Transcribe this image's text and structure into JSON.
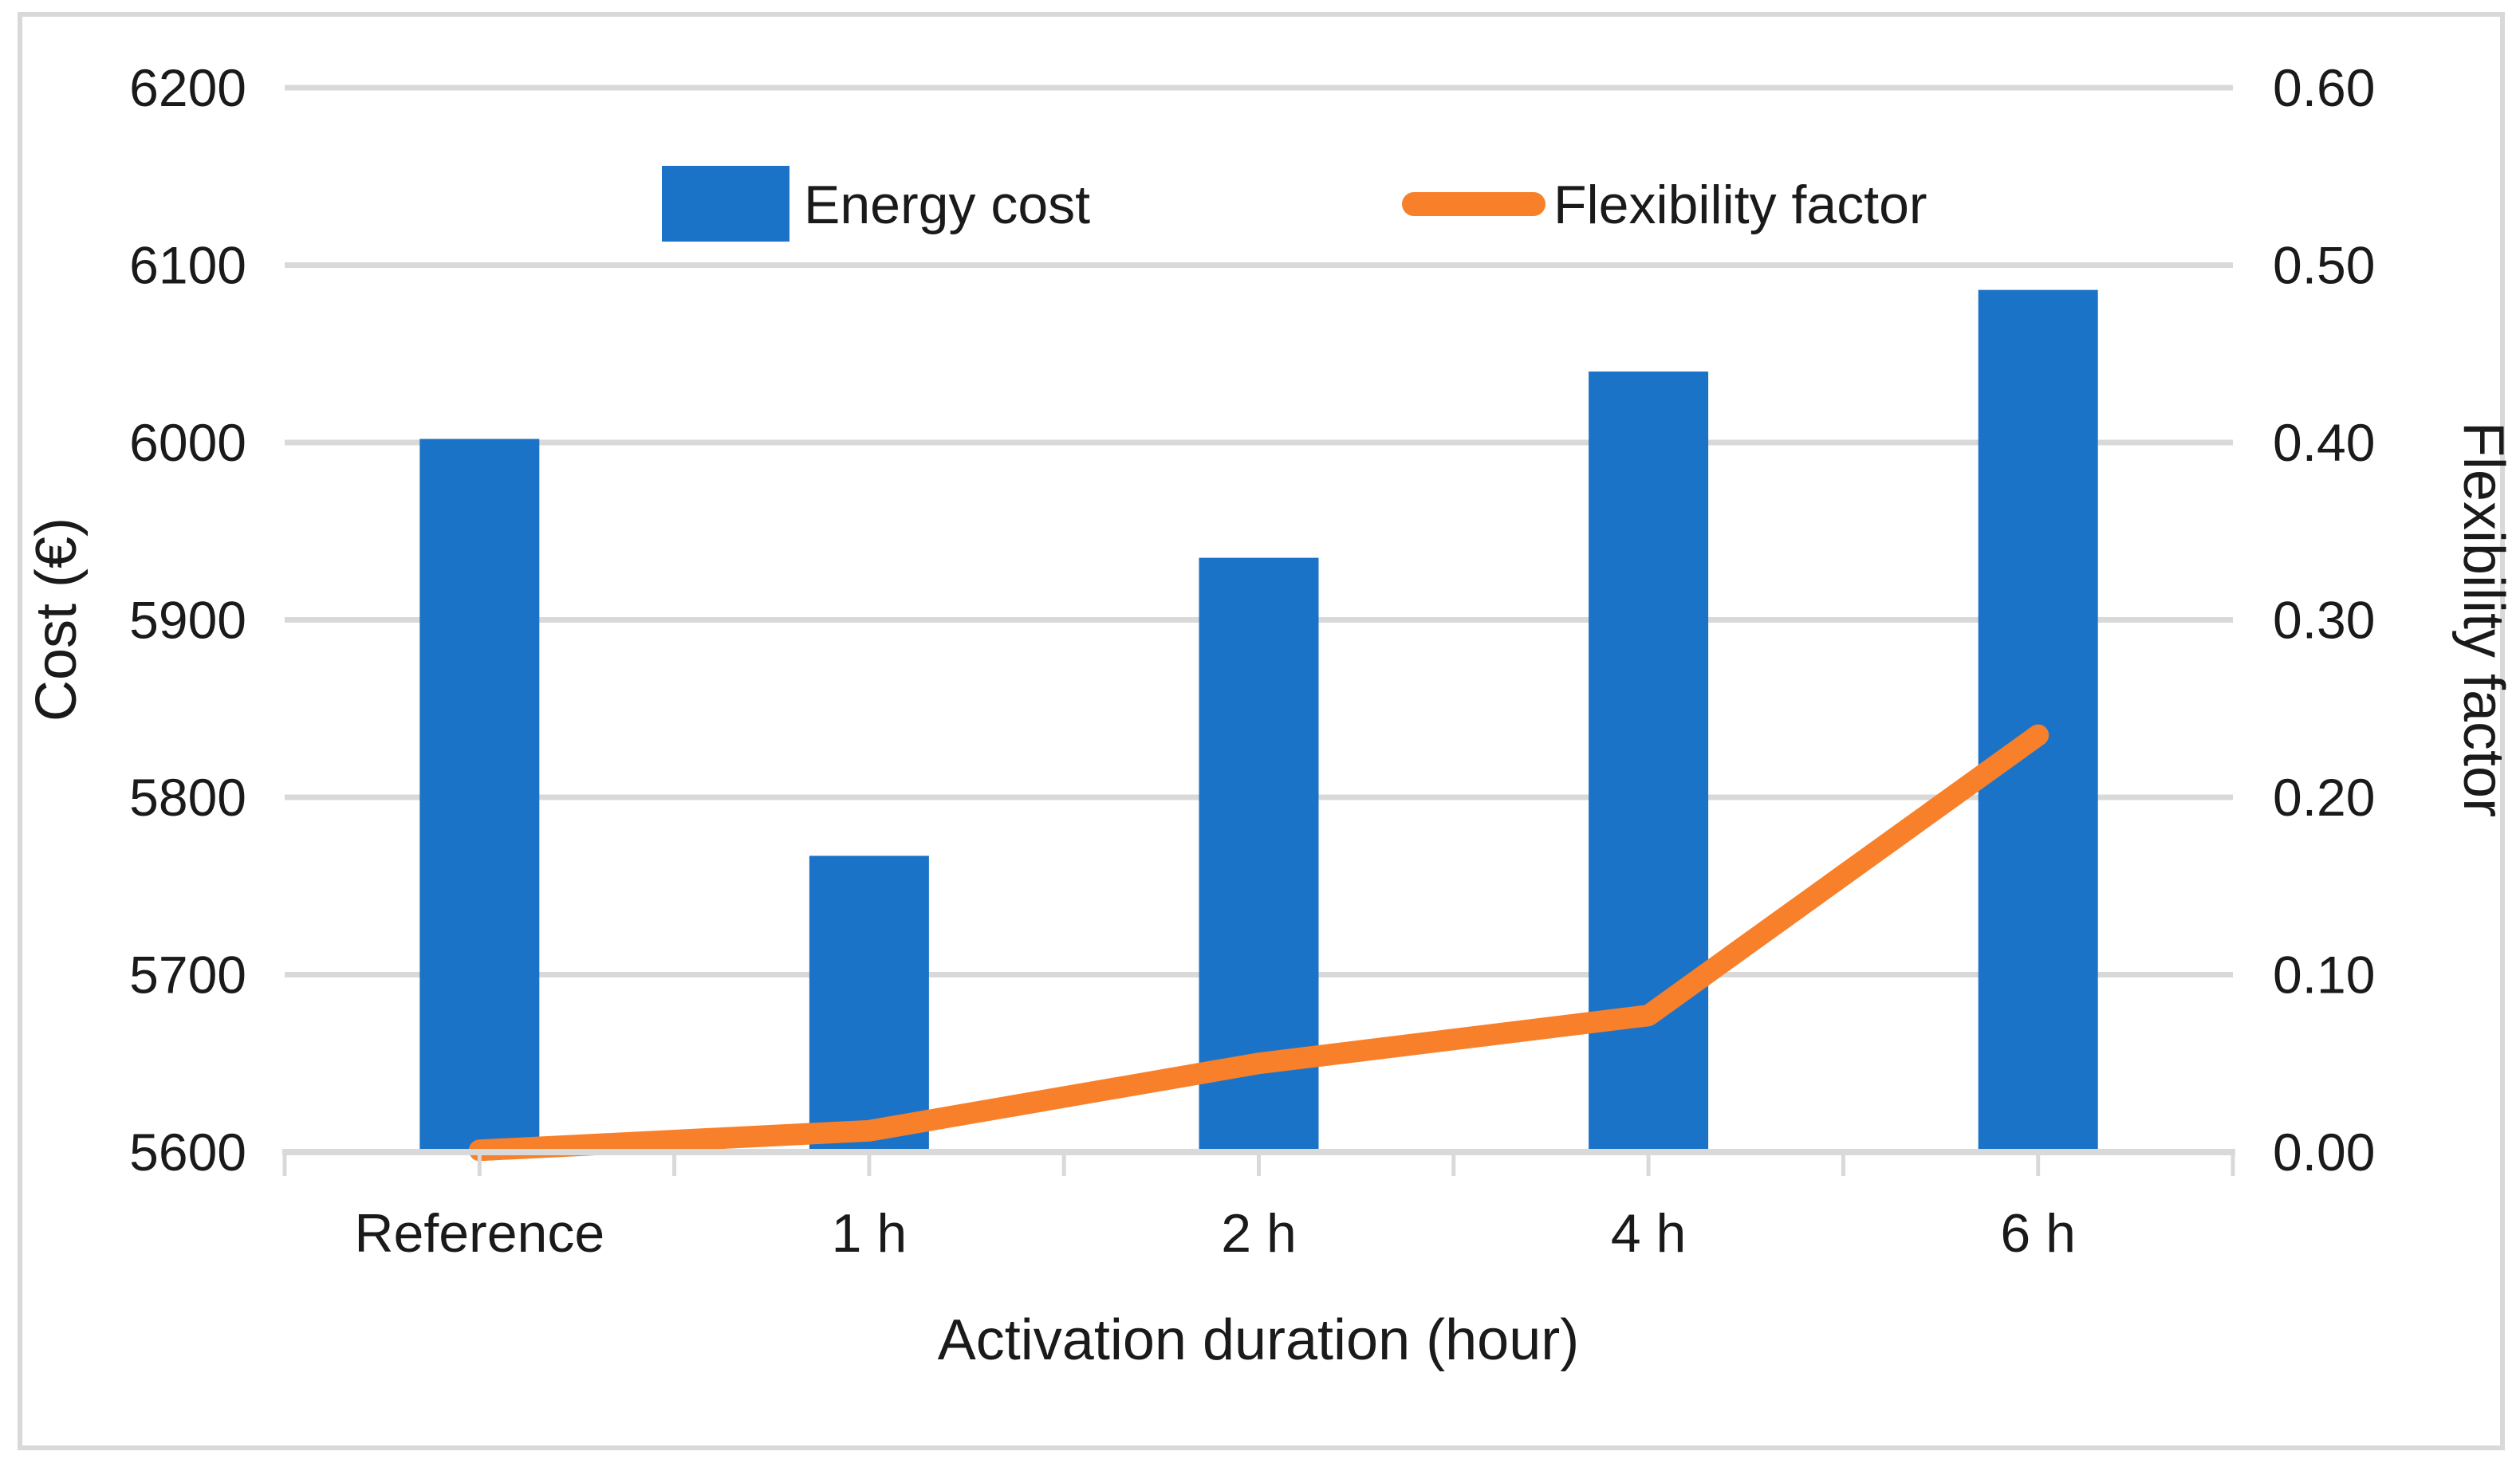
{
  "chart_data": {
    "type": "combo-bar-line",
    "categories": [
      "Reference",
      "1 h",
      "2 h",
      "4 h",
      "6 h"
    ],
    "series": [
      {
        "name": "Energy cost",
        "type": "bar",
        "axis": "left",
        "color": "#1b73c8",
        "values": [
          6002,
          5767,
          5935,
          6040,
          6086
        ]
      },
      {
        "name": "Flexibility factor",
        "type": "line",
        "axis": "right",
        "color": "#f8802a",
        "values": [
          0.001,
          0.012,
          0.05,
          0.077,
          0.235
        ]
      }
    ],
    "left_axis": {
      "title": "Cost (€)",
      "min": 5600,
      "max": 6200,
      "step": 100,
      "tick_labels": [
        "5600",
        "5700",
        "5800",
        "5900",
        "6000",
        "6100",
        "6200"
      ]
    },
    "right_axis": {
      "title": "Flexibility factor",
      "min": 0.0,
      "max": 0.6,
      "step": 0.1,
      "tick_labels": [
        "0.00",
        "0.10",
        "0.20",
        "0.30",
        "0.40",
        "0.50",
        "0.60"
      ]
    },
    "x_axis": {
      "title": "Activation duration (hour)"
    },
    "legend": {
      "position": "top-center",
      "items": [
        {
          "label": "Energy cost",
          "swatch": "bar",
          "color": "#1b73c8"
        },
        {
          "label": "Flexibility factor",
          "swatch": "line",
          "color": "#f8802a"
        }
      ]
    },
    "grid": true,
    "colors": {
      "gridline": "#d9d9d9",
      "axis_line": "#d9d9d9",
      "border": "#d9d9d9",
      "background": "#ffffff",
      "text": "#1a1a1a"
    }
  }
}
